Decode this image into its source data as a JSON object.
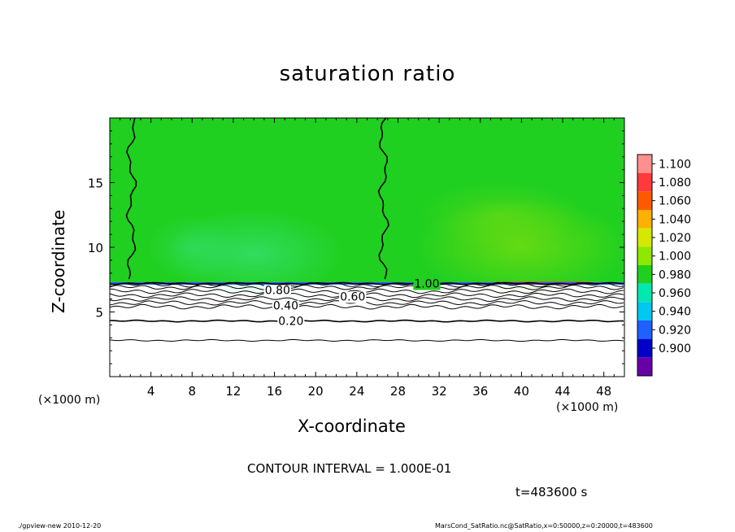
{
  "chart_data": {
    "type": "heatmap",
    "title": "saturation ratio",
    "xlabel": "X-coordinate",
    "ylabel": "Z-coordinate",
    "x_unit": "(×1000 m)",
    "xlim": [
      0,
      50
    ],
    "ylim": [
      0,
      20
    ],
    "x_ticks": [
      4,
      8,
      12,
      16,
      20,
      24,
      28,
      32,
      36,
      40,
      44,
      48
    ],
    "y_ticks": [
      5,
      10,
      15
    ],
    "colorbar": {
      "levels": [
        "1.100",
        "1.080",
        "1.060",
        "1.040",
        "1.020",
        "1.000",
        "0.980",
        "0.960",
        "0.940",
        "0.920",
        "0.900"
      ],
      "colors": [
        "#ff9090",
        "#ff3a3a",
        "#ff5a00",
        "#ffb000",
        "#d4e800",
        "#8ee800",
        "#20d020",
        "#00e8b0",
        "#00c8f0",
        "#2060ff",
        "#0000c8",
        "#6800a8"
      ]
    },
    "contour_labels": [
      {
        "text": "1.00",
        "x": 30.8,
        "z": 7.2
      },
      {
        "text": "0.80",
        "x": 16.3,
        "z": 6.7
      },
      {
        "text": "0.60",
        "x": 23.6,
        "z": 6.2
      },
      {
        "text": "0.40",
        "x": 17.1,
        "z": 5.5
      },
      {
        "text": "0.20",
        "x": 17.6,
        "z": 4.3
      }
    ],
    "contour_lines_z": [
      7.2,
      7.1,
      6.9,
      6.6,
      6.3,
      6.0,
      5.7,
      5.4,
      4.3,
      2.8
    ],
    "vertical_contour_x": [
      2.1,
      26.6
    ]
  },
  "contour_interval": "CONTOUR INTERVAL = 1.000E-01",
  "time_label": "t=483600 s",
  "footer_left": "./gpview-new   2010-12-20",
  "footer_right": "MarsCond_SatRatio.nc@SatRatio,x=0:50000,z=0:20000,t=483600"
}
